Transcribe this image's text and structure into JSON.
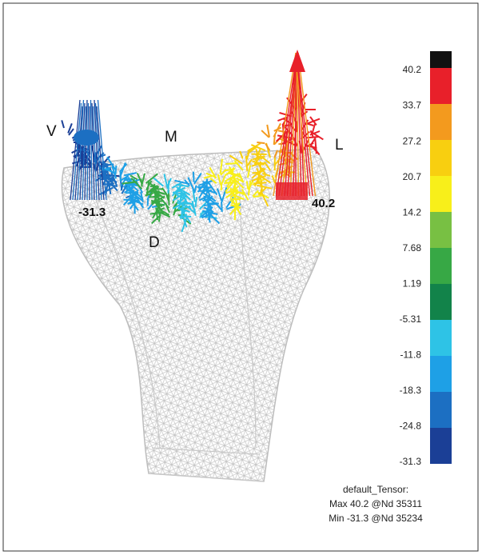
{
  "annotations": {
    "v": "V",
    "m": "M",
    "l": "L",
    "d": "D",
    "min_label": "-31.3",
    "max_label": "40.2"
  },
  "legend": {
    "colors": [
      "#111111",
      "#e8202a",
      "#f39a1e",
      "#f8cf10",
      "#f8ef1a",
      "#78c043",
      "#37a845",
      "#12834a",
      "#2ec3e6",
      "#1ea0e6",
      "#1c6fc2",
      "#1b3f96"
    ],
    "labels": [
      "40.2",
      "33.7",
      "27.2",
      "20.7",
      "14.2",
      "7.68",
      "1.19",
      "-5.31",
      "-11.8",
      "-18.3",
      "-24.8",
      "-31.3"
    ]
  },
  "info": {
    "title": "default_Tensor:",
    "max": "Max 40.2 @Nd 35311",
    "min": "Min -31.3 @Nd 35234"
  }
}
